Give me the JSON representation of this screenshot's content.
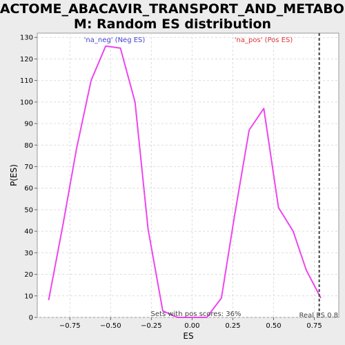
{
  "chart_data": {
    "type": "line",
    "title_lines": [
      "REACTOME_ABACAVIR_TRANSPORT_AND_METABOLIS",
      "M: Random ES distribution"
    ],
    "xlabel": "ES",
    "ylabel": "P(ES)",
    "xlim": [
      -0.95,
      0.9
    ],
    "ylim": [
      0,
      132
    ],
    "x_ticks": [
      -0.75,
      -0.5,
      -0.25,
      0.0,
      0.25,
      0.5,
      0.75
    ],
    "x_tick_labels": [
      "−0.75",
      "−0.50",
      "−0.25",
      "0.00",
      "0.25",
      "0.50",
      "0.75"
    ],
    "y_ticks": [
      0,
      10,
      20,
      30,
      40,
      50,
      60,
      70,
      80,
      90,
      100,
      110,
      120,
      130
    ],
    "y_tick_labels": [
      "0",
      "10",
      "20",
      "30",
      "40",
      "50",
      "60",
      "70",
      "80",
      "90",
      "100",
      "110",
      "120",
      "130"
    ],
    "grid": true,
    "series": [
      {
        "color": "#ee44ee",
        "x": [
          -0.88,
          -0.79,
          -0.71,
          -0.62,
          -0.53,
          -0.44,
          -0.35,
          -0.27,
          -0.18,
          -0.09,
          0.0,
          0.09,
          0.18,
          0.26,
          0.35,
          0.44,
          0.53,
          0.62,
          0.7,
          0.79
        ],
        "y": [
          8,
          44,
          78,
          110,
          126,
          125,
          100,
          41,
          3,
          0,
          0,
          0,
          9,
          47,
          87,
          97,
          51,
          40,
          22,
          9
        ]
      }
    ],
    "real_es": {
      "x": 0.78,
      "label": "Real ES 0.8",
      "color": "#404040"
    },
    "annotations": {
      "neg": {
        "text": "'na_neg' (Neg ES)",
        "color": "#4040cc"
      },
      "pos": {
        "text": "'na_pos' (Pos ES)",
        "color": "#dd3333"
      },
      "pos_scores": {
        "text": "Sets with pos scores: 36%",
        "color": "#404040"
      }
    }
  }
}
